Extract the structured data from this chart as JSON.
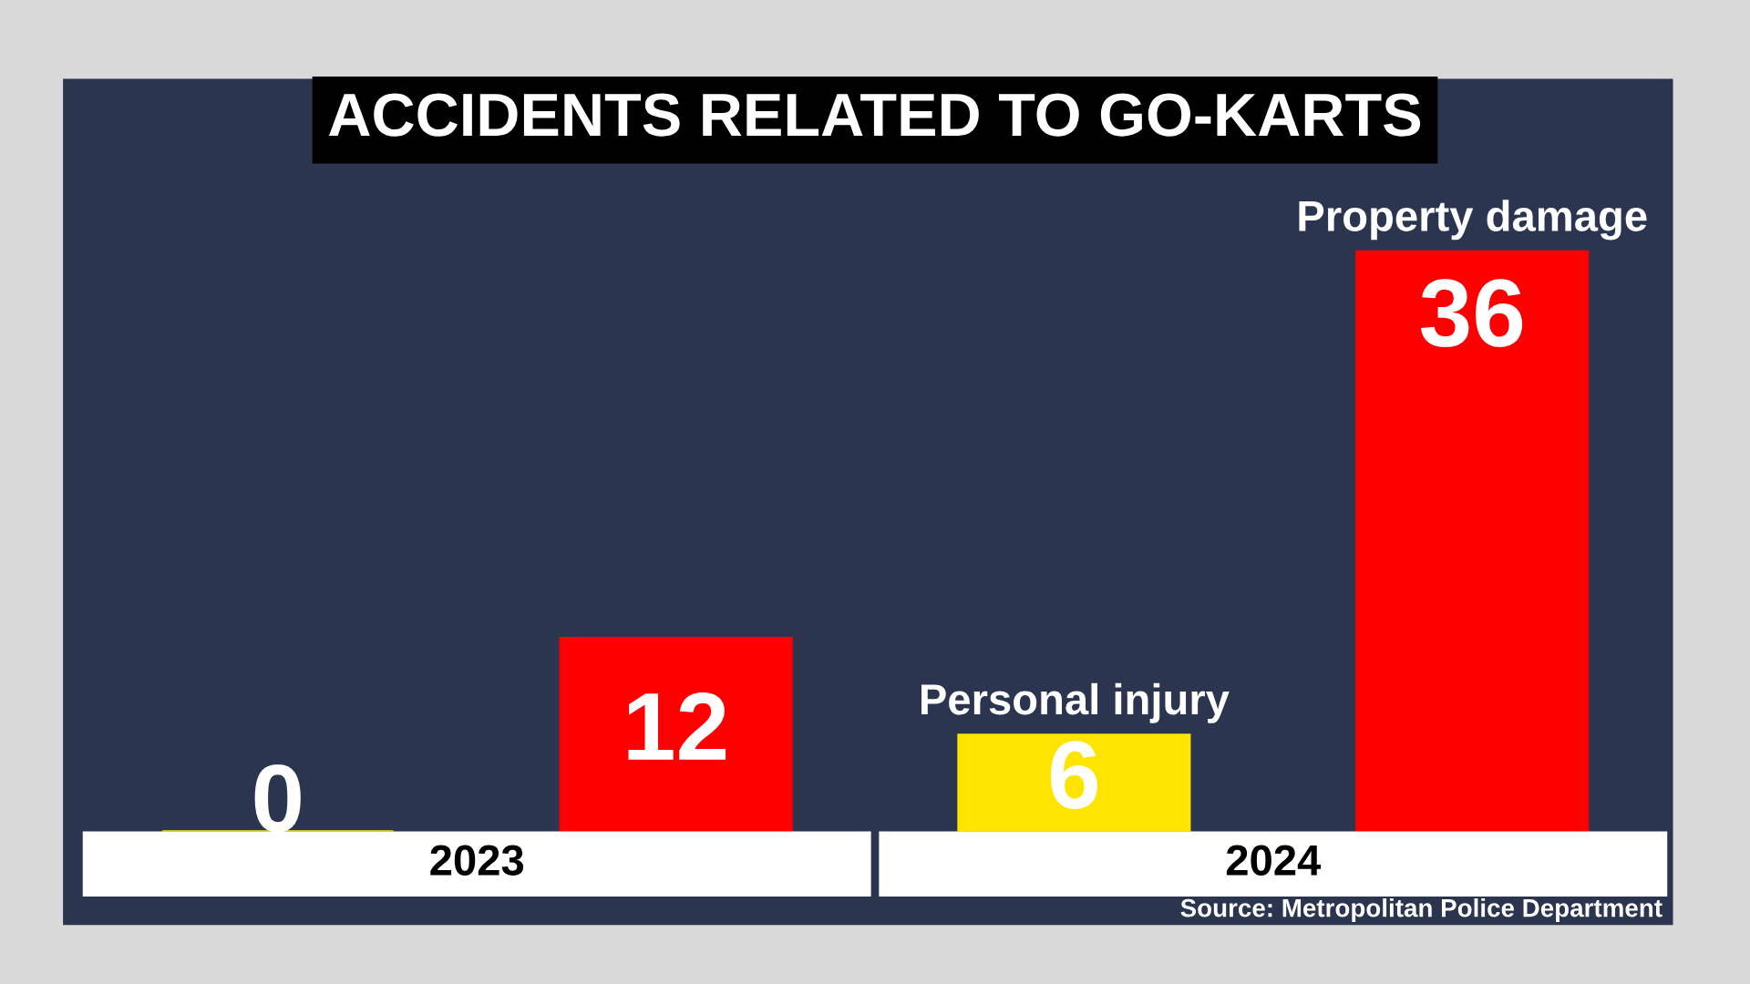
{
  "chart_data": {
    "type": "bar",
    "title": "ACCIDENTS RELATED TO GO-KARTS",
    "categories": [
      "2023",
      "2024"
    ],
    "series": [
      {
        "name": "Personal injury",
        "color": "#ffe400",
        "values": [
          0,
          6
        ]
      },
      {
        "name": "Property damage",
        "color": "#ff0000",
        "values": [
          12,
          36
        ]
      }
    ],
    "data_labels": true,
    "legend": false,
    "annotations": [
      "Source: Metropolitan Police Department"
    ]
  }
}
